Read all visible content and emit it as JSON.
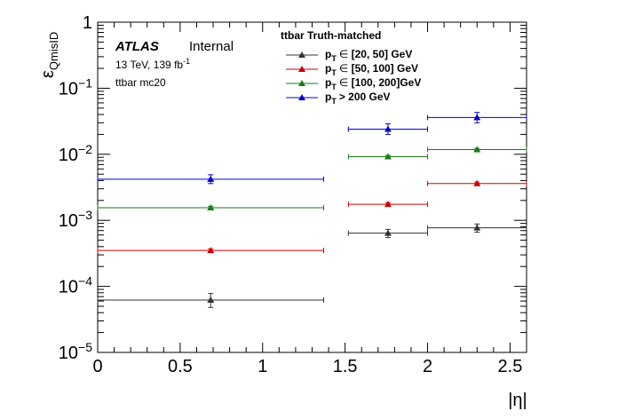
{
  "chart_data": {
    "type": "scatter",
    "xlabel": "|η|",
    "ylabel": {
      "main": "ε",
      "sub": "QmisID"
    },
    "xlim": [
      0,
      2.6
    ],
    "ylim": [
      1e-05,
      1
    ],
    "yscale": "log",
    "x_ticks": [
      {
        "value": 0,
        "label": "0"
      },
      {
        "value": 0.5,
        "label": "0.5"
      },
      {
        "value": 1,
        "label": "1"
      },
      {
        "value": 1.5,
        "label": "1.5"
      },
      {
        "value": 2,
        "label": "2"
      },
      {
        "value": 2.5,
        "label": "2.5"
      }
    ],
    "y_ticks": [
      {
        "value": 1e-05,
        "base": "10",
        "exp": "−5"
      },
      {
        "value": 0.0001,
        "base": "10",
        "exp": "−4"
      },
      {
        "value": 0.001,
        "base": "10",
        "exp": "−3"
      },
      {
        "value": 0.01,
        "base": "10",
        "exp": "−2"
      },
      {
        "value": 0.1,
        "base": "10",
        "exp": "−1"
      },
      {
        "value": 1,
        "base": "1",
        "exp": ""
      }
    ],
    "x_bins": [
      [
        0,
        1.37
      ],
      [
        1.52,
        2.0
      ],
      [
        2.0,
        2.6
      ]
    ],
    "legend": {
      "title": "ttbar Truth-matched",
      "placement": "top-right"
    },
    "series": [
      {
        "label_main": "p",
        "label_sub": "T",
        "label_rest": "∈ [20, 50] GeV",
        "color": "#333333",
        "points": [
          {
            "x": 0.685,
            "y": 6.2e-05,
            "ylo": 4.8e-05,
            "yhi": 7.8e-05
          },
          {
            "x": 1.76,
            "y": 0.00064,
            "ylo": 0.00055,
            "yhi": 0.00073
          },
          {
            "x": 2.3,
            "y": 0.00077,
            "ylo": 0.00066,
            "yhi": 0.00088
          }
        ]
      },
      {
        "label_main": "p",
        "label_sub": "T",
        "label_rest": "∈ [50, 100] GeV",
        "color": "#cc0000",
        "points": [
          {
            "x": 0.685,
            "y": 0.00035,
            "ylo": 0.00033,
            "yhi": 0.00037
          },
          {
            "x": 1.76,
            "y": 0.00175,
            "ylo": 0.00165,
            "yhi": 0.00185
          },
          {
            "x": 2.3,
            "y": 0.0036,
            "ylo": 0.0034,
            "yhi": 0.0038
          }
        ]
      },
      {
        "label_main": "p",
        "label_sub": "T",
        "label_rest": "∈ [100, 200]GeV",
        "color": "#1a7a1a",
        "points": [
          {
            "x": 0.685,
            "y": 0.00155,
            "ylo": 0.00147,
            "yhi": 0.00163
          },
          {
            "x": 1.76,
            "y": 0.0092,
            "ylo": 0.0088,
            "yhi": 0.0096
          },
          {
            "x": 2.3,
            "y": 0.0118,
            "ylo": 0.0113,
            "yhi": 0.0123
          }
        ]
      },
      {
        "label_main": "p",
        "label_sub": "T",
        "label_rest": "> 200 GeV",
        "color": "#0000cc",
        "points": [
          {
            "x": 0.685,
            "y": 0.0042,
            "ylo": 0.0036,
            "yhi": 0.0049
          },
          {
            "x": 1.76,
            "y": 0.024,
            "ylo": 0.02,
            "yhi": 0.029
          },
          {
            "x": 2.3,
            "y": 0.036,
            "ylo": 0.03,
            "yhi": 0.043
          }
        ]
      }
    ]
  },
  "annotations": {
    "atlas": "ATLAS",
    "internal": "Internal",
    "energy_prefix": "13 TeV, 139 fb",
    "energy_exp": "-1",
    "sample": "ttbar mc20"
  }
}
